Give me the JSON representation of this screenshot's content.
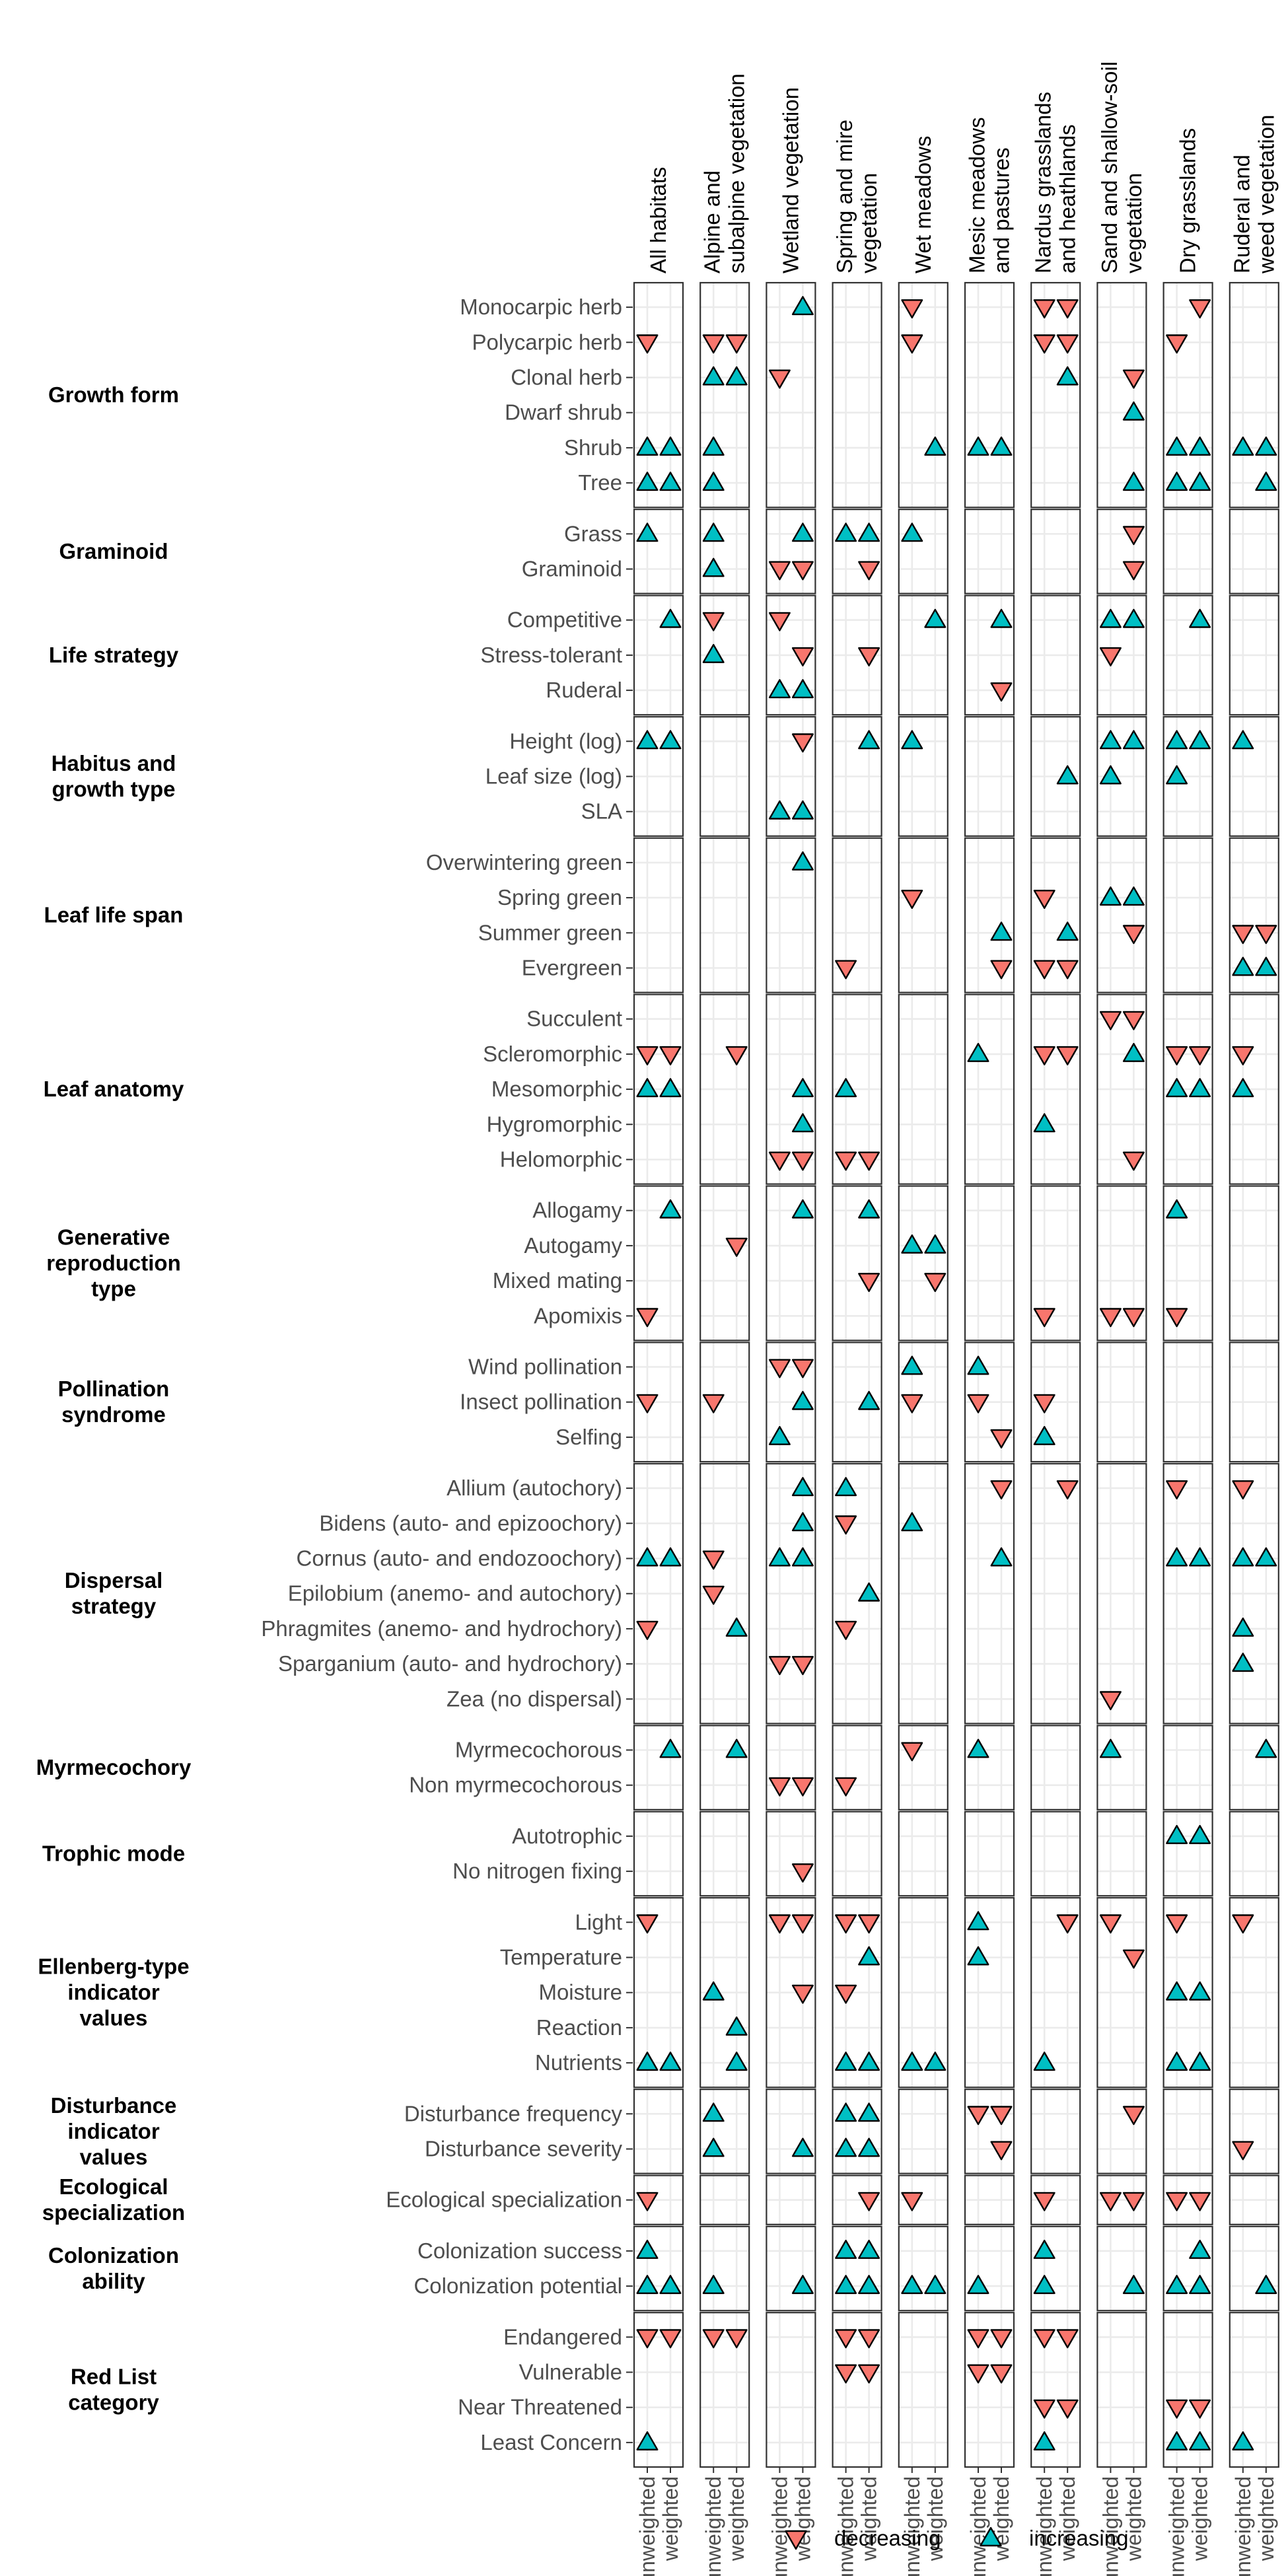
{
  "chart_data": {
    "type": "scatter",
    "columns": [
      "All habitats",
      "Alpine and subalpine vegetation",
      "Wetland vegetation",
      "Spring and mire vegetation",
      "Wet meadows",
      "Mesic meadows and pastures",
      "Nardus grasslands and heathlands",
      "Sand and shallow-soil vegetation",
      "Dry grasslands",
      "Ruderal and weed vegetation"
    ],
    "x_categories": [
      "unweighted",
      "weighted"
    ],
    "legend": [
      {
        "key": "D",
        "label": "decreasing",
        "color": "#F8766D"
      },
      {
        "key": "I",
        "label": "increasing",
        "color": "#00BFC4"
      }
    ],
    "legend_position": "bottom",
    "grid": true,
    "groups": [
      {
        "name": "Growth form",
        "rows": [
          {
            "label": "Monocarpic herb",
            "cells": [
              "",
              "",
              "-I",
              "",
              "D-",
              "",
              "DD",
              "",
              "-D",
              ""
            ]
          },
          {
            "label": "Polycarpic herb",
            "cells": [
              "D-",
              "DD",
              "",
              "",
              "D-",
              "",
              "DD",
              "",
              "D-",
              ""
            ]
          },
          {
            "label": "Clonal herb",
            "cells": [
              "",
              "II",
              "D-",
              "",
              "",
              "",
              "-I",
              "-D",
              "",
              ""
            ]
          },
          {
            "label": "Dwarf shrub",
            "cells": [
              "",
              "",
              "",
              "",
              "",
              "",
              "",
              "-I",
              "",
              ""
            ]
          },
          {
            "label": "Shrub",
            "cells": [
              "II",
              "I-",
              "",
              "",
              "-I",
              "II",
              "",
              "",
              "II",
              "II"
            ]
          },
          {
            "label": "Tree",
            "cells": [
              "II",
              "I-",
              "",
              "",
              "",
              "",
              "",
              "-I",
              "II",
              "-I"
            ]
          }
        ]
      },
      {
        "name": "Graminoid",
        "rows": [
          {
            "label": "Grass",
            "cells": [
              "I-",
              "I-",
              "-I",
              "II",
              "I-",
              "",
              "",
              "-D",
              "",
              ""
            ]
          },
          {
            "label": "Graminoid",
            "cells": [
              "",
              "I-",
              "DD",
              "-D",
              "",
              "",
              "",
              "-D",
              "",
              ""
            ]
          }
        ]
      },
      {
        "name": "Life strategy",
        "rows": [
          {
            "label": "Competitive",
            "cells": [
              "-I",
              "D-",
              "D-",
              "",
              "-I",
              "-I",
              "",
              "II",
              "-I",
              ""
            ]
          },
          {
            "label": "Stress-tolerant",
            "cells": [
              "",
              "I-",
              "-D",
              "-D",
              "",
              "",
              "",
              "D-",
              "",
              ""
            ]
          },
          {
            "label": "Ruderal",
            "cells": [
              "",
              "",
              "II",
              "",
              "",
              "-D",
              "",
              "",
              "",
              ""
            ]
          }
        ]
      },
      {
        "name": "Habitus and growth type",
        "rows": [
          {
            "label": "Height (log)",
            "cells": [
              "II",
              "",
              "-D",
              "-I",
              "I-",
              "",
              "",
              "II",
              "II",
              "I-"
            ]
          },
          {
            "label": "Leaf size (log)",
            "cells": [
              "",
              "",
              "",
              "",
              "",
              "",
              "-I",
              "I-",
              "I-",
              ""
            ]
          },
          {
            "label": "SLA",
            "cells": [
              "",
              "",
              "II",
              "",
              "",
              "",
              "",
              "",
              "",
              ""
            ]
          }
        ]
      },
      {
        "name": "Leaf life span",
        "rows": [
          {
            "label": "Overwintering green",
            "cells": [
              "",
              "",
              "-I",
              "",
              "",
              "",
              "",
              "",
              "",
              ""
            ]
          },
          {
            "label": "Spring green",
            "cells": [
              "",
              "",
              "",
              "",
              "D-",
              "",
              "D-",
              "II",
              "",
              ""
            ]
          },
          {
            "label": "Summer green",
            "cells": [
              "",
              "",
              "",
              "",
              "",
              "-I",
              "-I",
              "-D",
              "",
              "DD"
            ]
          },
          {
            "label": "Evergreen",
            "cells": [
              "",
              "",
              "",
              "D-",
              "",
              "-D",
              "DD",
              "",
              "",
              "II"
            ]
          }
        ]
      },
      {
        "name": "Leaf anatomy",
        "rows": [
          {
            "label": "Succulent",
            "cells": [
              "",
              "",
              "",
              "",
              "",
              "",
              "",
              "DD",
              "",
              ""
            ]
          },
          {
            "label": "Scleromorphic",
            "cells": [
              "DD",
              "-D",
              "",
              "",
              "",
              "I-",
              "DD",
              "-I",
              "DD",
              "D-"
            ]
          },
          {
            "label": "Mesomorphic",
            "cells": [
              "II",
              "",
              "-I",
              "I-",
              "",
              "",
              "",
              "",
              "II",
              "I-"
            ]
          },
          {
            "label": "Hygromorphic",
            "cells": [
              "",
              "",
              "-I",
              "",
              "",
              "",
              "I-",
              "",
              "",
              ""
            ]
          },
          {
            "label": "Helomorphic",
            "cells": [
              "",
              "",
              "DD",
              "DD",
              "",
              "",
              "",
              "-D",
              "",
              ""
            ]
          }
        ]
      },
      {
        "name": "Generative reproduction type",
        "rows": [
          {
            "label": "Allogamy",
            "cells": [
              "-I",
              "",
              "-I",
              "-I",
              "",
              "",
              "",
              "",
              "I-",
              ""
            ]
          },
          {
            "label": "Autogamy",
            "cells": [
              "",
              "-D",
              "",
              "",
              "II",
              "",
              "",
              "",
              "",
              ""
            ]
          },
          {
            "label": "Mixed mating",
            "cells": [
              "",
              "",
              "",
              "-D",
              "-D",
              "",
              "",
              "",
              "",
              ""
            ]
          },
          {
            "label": "Apomixis",
            "cells": [
              "D-",
              "",
              "",
              "",
              "",
              "",
              "D-",
              "DD",
              "D-",
              ""
            ]
          }
        ]
      },
      {
        "name": "Pollination syndrome",
        "rows": [
          {
            "label": "Wind pollination",
            "cells": [
              "",
              "",
              "DD",
              "",
              "I-",
              "I-",
              "",
              "",
              "",
              ""
            ]
          },
          {
            "label": "Insect pollination",
            "cells": [
              "D-",
              "D-",
              "-I",
              "-I",
              "D-",
              "D-",
              "D-",
              "",
              "",
              ""
            ]
          },
          {
            "label": "Selfing",
            "cells": [
              "",
              "",
              "I-",
              "",
              "",
              "-D",
              "I-",
              "",
              "",
              ""
            ]
          }
        ]
      },
      {
        "name": "Dispersal strategy",
        "rows": [
          {
            "label": "Allium (autochory)",
            "cells": [
              "",
              "",
              "-I",
              "I-",
              "",
              "-D",
              "-D",
              "",
              "D-",
              "D-"
            ]
          },
          {
            "label": "Bidens (auto- and epizoochory)",
            "cells": [
              "",
              "",
              "-I",
              "D-",
              "I-",
              "",
              "",
              "",
              "",
              ""
            ]
          },
          {
            "label": "Cornus (auto- and endozoochory)",
            "cells": [
              "II",
              "D-",
              "II",
              "",
              "",
              "-I",
              "",
              "",
              "II",
              "II"
            ]
          },
          {
            "label": "Epilobium (anemo- and autochory)",
            "cells": [
              "",
              "D-",
              "",
              "-I",
              "",
              "",
              "",
              "",
              "",
              ""
            ]
          },
          {
            "label": "Phragmites (anemo- and hydrochory)",
            "cells": [
              "D-",
              "-I",
              "",
              "D-",
              "",
              "",
              "",
              "",
              "",
              "I-"
            ]
          },
          {
            "label": "Sparganium (auto- and hydrochory)",
            "cells": [
              "",
              "",
              "DD",
              "",
              "",
              "",
              "",
              "",
              "",
              "I-"
            ]
          },
          {
            "label": "Zea (no dispersal)",
            "cells": [
              "",
              "",
              "",
              "",
              "",
              "",
              "",
              "D-",
              "",
              ""
            ]
          }
        ]
      },
      {
        "name": "Myrmecochory",
        "rows": [
          {
            "label": "Myrmecochorous",
            "cells": [
              "-I",
              "-I",
              "",
              "",
              "D-",
              "I-",
              "",
              "I-",
              "",
              "-I"
            ]
          },
          {
            "label": "Non myrmecochorous",
            "cells": [
              "",
              "",
              "DD",
              "D-",
              "",
              "",
              "",
              "",
              "",
              ""
            ]
          }
        ]
      },
      {
        "name": "Trophic mode",
        "rows": [
          {
            "label": "Autotrophic",
            "cells": [
              "",
              "",
              "",
              "",
              "",
              "",
              "",
              "",
              "II",
              ""
            ]
          },
          {
            "label": "No nitrogen fixing",
            "cells": [
              "",
              "",
              "-D",
              "",
              "",
              "",
              "",
              "",
              "",
              ""
            ]
          }
        ]
      },
      {
        "name": "Ellenberg-type indicator values",
        "rows": [
          {
            "label": "Light",
            "cells": [
              "D-",
              "",
              "DD",
              "DD",
              "",
              "I-",
              "-D",
              "D-",
              "D-",
              "D-"
            ]
          },
          {
            "label": "Temperature",
            "cells": [
              "",
              "",
              "",
              "-I",
              "",
              "I-",
              "",
              "-D",
              "",
              ""
            ]
          },
          {
            "label": "Moisture",
            "cells": [
              "",
              "I-",
              "-D",
              "D-",
              "",
              "",
              "",
              "",
              "II",
              ""
            ]
          },
          {
            "label": "Reaction",
            "cells": [
              "",
              "-I",
              "",
              "",
              "",
              "",
              "",
              "",
              "",
              ""
            ]
          },
          {
            "label": "Nutrients",
            "cells": [
              "II",
              "-I",
              "",
              "II",
              "II",
              "",
              "I-",
              "",
              "II",
              ""
            ]
          }
        ]
      },
      {
        "name": "Disturbance indicator values",
        "rows": [
          {
            "label": "Disturbance frequency",
            "cells": [
              "",
              "I-",
              "",
              "II",
              "",
              "DD",
              "",
              "-D",
              "",
              ""
            ]
          },
          {
            "label": "Disturbance severity",
            "cells": [
              "",
              "I-",
              "-I",
              "II",
              "",
              "-D",
              "",
              "",
              "",
              "D-"
            ]
          }
        ]
      },
      {
        "name": "Ecological specialization",
        "rows": [
          {
            "label": "Ecological specialization",
            "cells": [
              "D-",
              "",
              "",
              "-D",
              "D-",
              "",
              "D-",
              "DD",
              "DD",
              ""
            ]
          }
        ]
      },
      {
        "name": "Colonization ability",
        "rows": [
          {
            "label": "Colonization success",
            "cells": [
              "I-",
              "",
              "",
              "II",
              "",
              "",
              "I-",
              "",
              "-I",
              ""
            ]
          },
          {
            "label": "Colonization potential",
            "cells": [
              "II",
              "I-",
              "-I",
              "II",
              "II",
              "I-",
              "I-",
              "-I",
              "II",
              "-I"
            ]
          }
        ]
      },
      {
        "name": "Red List category",
        "rows": [
          {
            "label": "Endangered",
            "cells": [
              "DD",
              "DD",
              "",
              "DD",
              "",
              "DD",
              "DD",
              "",
              "",
              ""
            ]
          },
          {
            "label": "Vulnerable",
            "cells": [
              "",
              "",
              "",
              "DD",
              "",
              "DD",
              "",
              "",
              "",
              ""
            ]
          },
          {
            "label": "Near Threatened",
            "cells": [
              "",
              "",
              "",
              "",
              "",
              "",
              "DD",
              "",
              "DD",
              ""
            ]
          },
          {
            "label": "Least Concern",
            "cells": [
              "I-",
              "",
              "",
              "",
              "",
              "",
              "I-",
              "",
              "II",
              "I-"
            ]
          }
        ]
      }
    ]
  }
}
